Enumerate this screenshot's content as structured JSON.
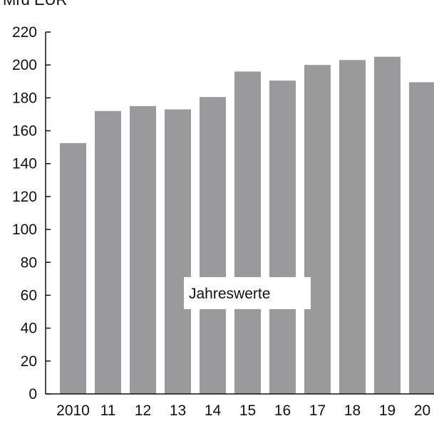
{
  "chart_data": {
    "type": "bar",
    "unit_label": "Mrd EUR",
    "annotation": "Jahreswerte",
    "categories": [
      "2010",
      "11",
      "12",
      "13",
      "14",
      "15",
      "16",
      "17",
      "18",
      "19",
      "20"
    ],
    "values": [
      152.5,
      172,
      175,
      173,
      180.5,
      196,
      190.5,
      200,
      203,
      205,
      189.5
    ],
    "yticks": [
      0,
      20,
      40,
      60,
      80,
      100,
      120,
      140,
      160,
      180,
      200,
      220
    ],
    "ylim": [
      0,
      220
    ],
    "bar_color": "#9a9a9c",
    "grid": false,
    "legend": "none"
  }
}
